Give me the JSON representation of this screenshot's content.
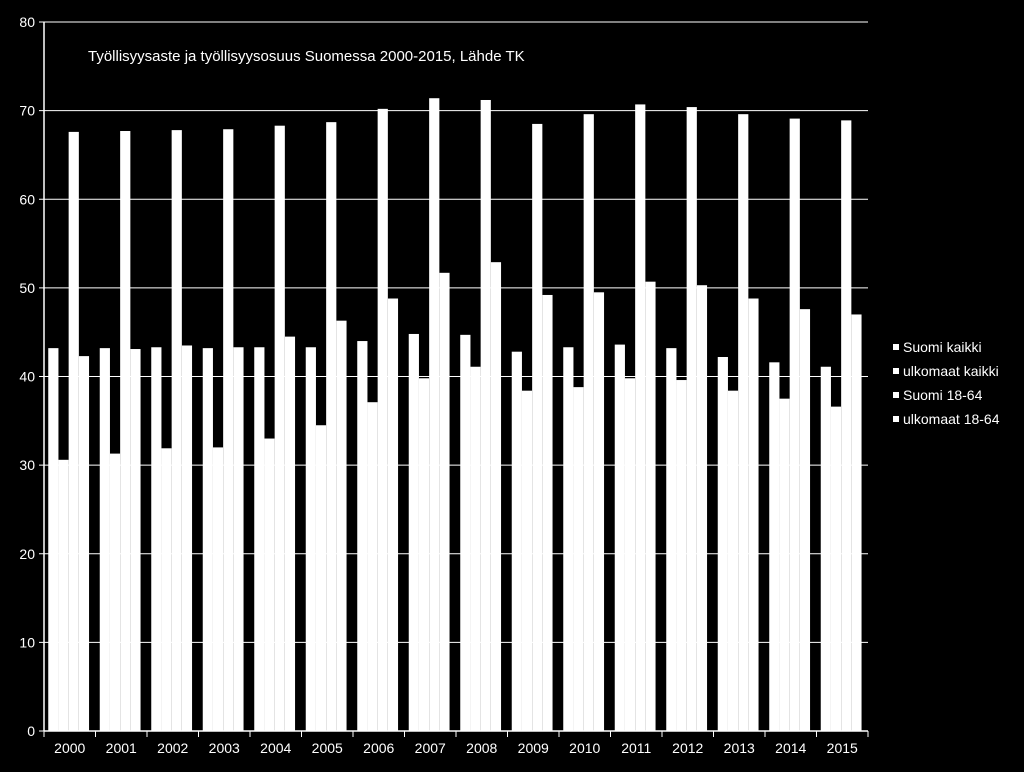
{
  "colors": {
    "background": "#000000",
    "bars": "#ffffff",
    "text": "#ffffff",
    "grid": "#ffffff"
  },
  "chart_data": {
    "type": "bar",
    "title": "Työllisyysaste ja työllisyysosuus Suomessa 2000-2015,  Lähde TK",
    "xlabel": "",
    "ylabel": "",
    "ylim": [
      0,
      80
    ],
    "yticks": [
      0,
      10,
      20,
      30,
      40,
      50,
      60,
      70,
      80
    ],
    "grid": true,
    "legend_position": "right",
    "categories": [
      "2000",
      "2001",
      "2002",
      "2003",
      "2004",
      "2005",
      "2006",
      "2007",
      "2008",
      "2009",
      "2010",
      "2011",
      "2012",
      "2013",
      "2014",
      "2015"
    ],
    "series": [
      {
        "name": "Suomi kaikki",
        "values": [
          43.2,
          43.2,
          43.3,
          43.2,
          43.3,
          43.3,
          44.0,
          44.8,
          44.7,
          42.8,
          43.3,
          43.6,
          43.2,
          42.2,
          41.6,
          41.1
        ]
      },
      {
        "name": "ulkomaat kaikki",
        "values": [
          30.6,
          31.3,
          31.9,
          32.0,
          33.0,
          34.5,
          37.1,
          39.8,
          41.1,
          38.4,
          38.8,
          39.8,
          39.6,
          38.4,
          37.5,
          36.6
        ]
      },
      {
        "name": "Suomi 18-64",
        "values": [
          67.6,
          67.7,
          67.8,
          67.9,
          68.3,
          68.7,
          70.2,
          71.4,
          71.2,
          68.5,
          69.6,
          70.7,
          70.4,
          69.6,
          69.1,
          68.9
        ]
      },
      {
        "name": "ulkomaat  18-64",
        "values": [
          42.3,
          43.1,
          43.5,
          43.3,
          44.5,
          46.3,
          48.8,
          51.7,
          52.9,
          49.2,
          49.5,
          50.7,
          50.3,
          48.8,
          47.6,
          47.0
        ]
      }
    ]
  }
}
